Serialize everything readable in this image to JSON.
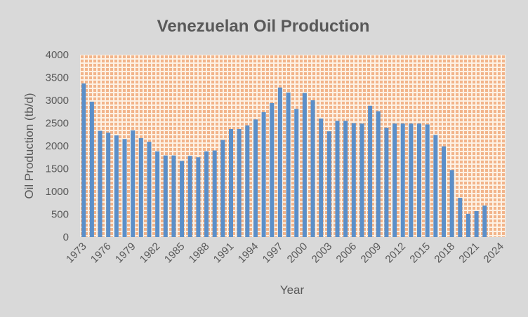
{
  "chart_data": {
    "type": "bar",
    "title": "Venezuelan Oil Production",
    "xlabel": "Year",
    "ylabel": "Oil Production (tb/d)",
    "ylim": [
      0,
      4000
    ],
    "yticks": [
      0,
      500,
      1000,
      1500,
      2000,
      2500,
      3000,
      3500,
      4000
    ],
    "grid": false,
    "legend": "none",
    "categories": [
      1973,
      1974,
      1975,
      1976,
      1977,
      1978,
      1979,
      1980,
      1981,
      1982,
      1983,
      1984,
      1985,
      1986,
      1987,
      1988,
      1989,
      1990,
      1991,
      1992,
      1993,
      1994,
      1995,
      1996,
      1997,
      1998,
      1999,
      2000,
      2001,
      2002,
      2003,
      2004,
      2005,
      2006,
      2007,
      2008,
      2009,
      2010,
      2011,
      2012,
      2013,
      2014,
      2015,
      2016,
      2017,
      2018,
      2019,
      2020,
      2021,
      2022,
      2023,
      2024
    ],
    "xtick_labels": [
      "1973",
      "1976",
      "1979",
      "1982",
      "1985",
      "1988",
      "1991",
      "1994",
      "1997",
      "2000",
      "2003",
      "2006",
      "2009",
      "2012",
      "2015",
      "2018",
      "2021",
      "2024"
    ],
    "values": [
      3370,
      2970,
      2330,
      2290,
      2230,
      2150,
      2340,
      2170,
      2090,
      1880,
      1790,
      1790,
      1670,
      1780,
      1750,
      1880,
      1900,
      2130,
      2370,
      2370,
      2450,
      2580,
      2740,
      2940,
      3280,
      3170,
      2810,
      3160,
      3000,
      2600,
      2320,
      2550,
      2550,
      2500,
      2490,
      2880,
      2760,
      2400,
      2490,
      2490,
      2490,
      2490,
      2470,
      2240,
      1990,
      1470,
      860,
      510,
      570,
      690,
      null,
      null
    ],
    "colors": {
      "bar": "#5b8fc9",
      "plot_bg": "#fde9d9",
      "plot_pattern": "#f4b183",
      "background": "#d9d9d9",
      "text": "#595959"
    }
  }
}
